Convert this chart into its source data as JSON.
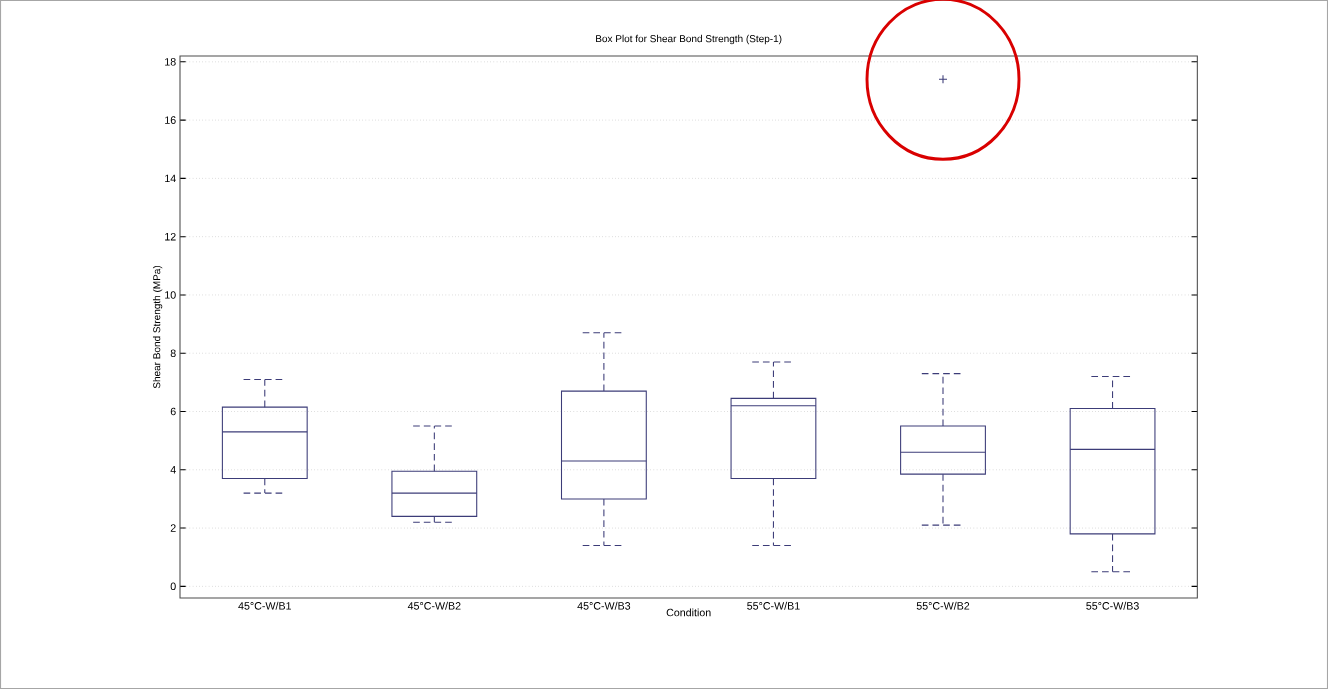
{
  "chart_data": {
    "type": "box",
    "title": "Box Plot for Shear Bond Strength (Step-1)",
    "xlabel": "Condition",
    "ylabel": "Shear Bond Strength (MPa)",
    "categories": [
      "45°C-W/B1",
      "45°C-W/B2",
      "45°C-W/B3",
      "55°C-W/B1",
      "55°C-W/B2",
      "55°C-W/B3"
    ],
    "boxes": [
      {
        "low": 3.2,
        "q1": 3.7,
        "median": 5.3,
        "q3": 6.15,
        "high": 7.1
      },
      {
        "low": 2.2,
        "q1": 2.4,
        "median": 3.2,
        "q3": 3.95,
        "high": 5.5
      },
      {
        "low": 1.4,
        "q1": 3.0,
        "median": 4.3,
        "q3": 6.7,
        "high": 8.7
      },
      {
        "low": 1.4,
        "q1": 3.7,
        "median": 6.2,
        "q3": 6.45,
        "high": 7.7
      },
      {
        "low": 2.1,
        "q1": 3.85,
        "median": 4.6,
        "q3": 5.5,
        "high": 7.3,
        "outliers": [
          17.4
        ]
      },
      {
        "low": 0.5,
        "q1": 1.8,
        "median": 4.7,
        "q3": 6.1,
        "high": 7.2
      }
    ],
    "color": "#3c3c78",
    "ylim": [
      -0.4,
      18.2
    ],
    "yticks": [
      0,
      2,
      4,
      6,
      8,
      10,
      12,
      14,
      16,
      18
    ],
    "grid": "y"
  }
}
